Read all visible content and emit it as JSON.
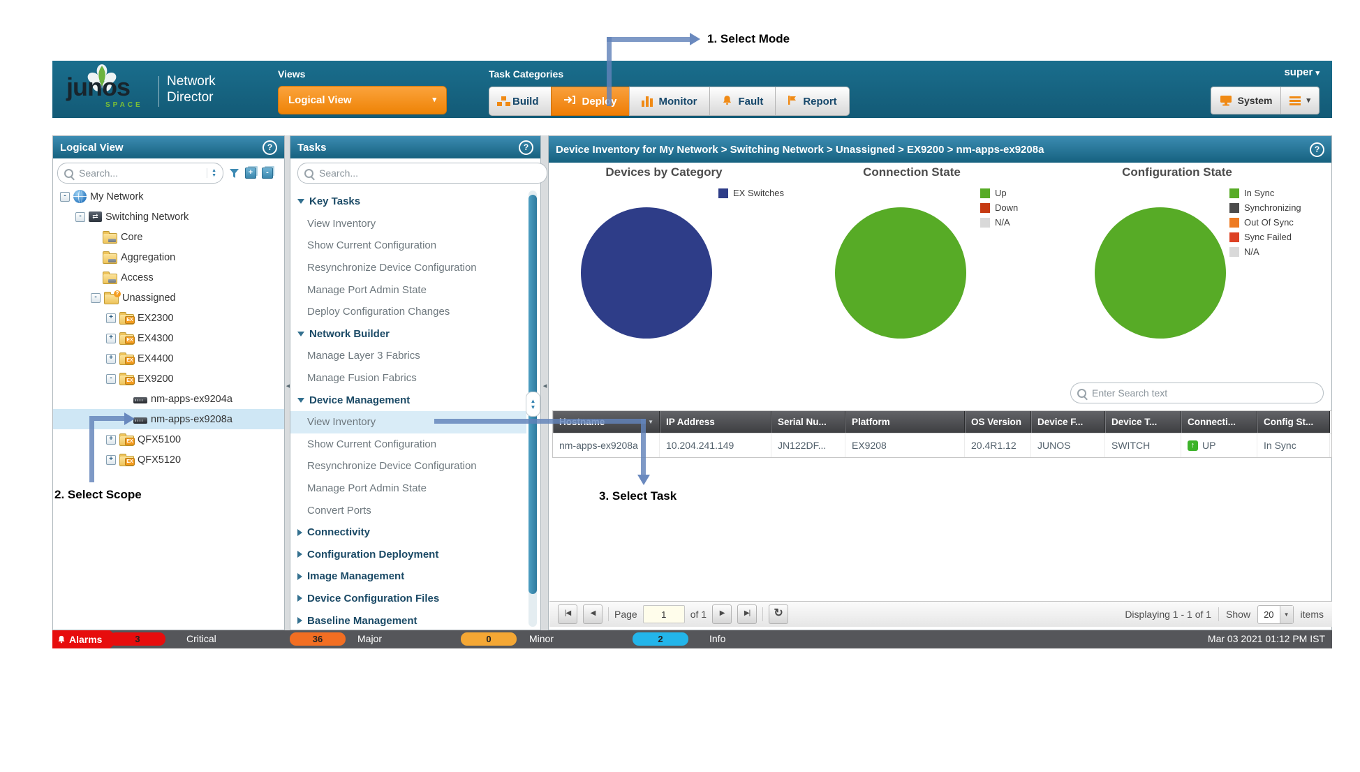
{
  "annotations": {
    "step1": "1. Select Mode",
    "step2": "2. Select Scope",
    "step3": "3. Select Task"
  },
  "header": {
    "logo_primary": "junos",
    "logo_space": "SPACE",
    "product": "Network Director",
    "views_label": "Views",
    "view_button_label": "Logical View",
    "task_categories_label": "Task Categories",
    "tabs": [
      {
        "label": "Build",
        "icon": "build-blocks-icon",
        "active": false
      },
      {
        "label": "Deploy",
        "icon": "deploy-arrow-icon",
        "active": true
      },
      {
        "label": "Monitor",
        "icon": "monitor-bars-icon",
        "active": false
      },
      {
        "label": "Fault",
        "icon": "fault-bell-icon",
        "active": false
      },
      {
        "label": "Report",
        "icon": "report-flag-icon",
        "active": false
      }
    ],
    "user_label": "super",
    "system_label": "System"
  },
  "logical_panel": {
    "title": "Logical View",
    "search_placeholder": "Search...",
    "tree": [
      {
        "label": "My Network",
        "depth": 0,
        "expander": "minus",
        "icon": "globe-icon",
        "selected": false
      },
      {
        "label": "Switching Network",
        "depth": 1,
        "expander": "minus",
        "icon": "switching-network-icon",
        "selected": false
      },
      {
        "label": "Core",
        "depth": 2,
        "expander": "none",
        "icon": "folder-device-icon",
        "selected": false
      },
      {
        "label": "Aggregation",
        "depth": 2,
        "expander": "none",
        "icon": "folder-device-icon",
        "selected": false
      },
      {
        "label": "Access",
        "depth": 2,
        "expander": "none",
        "icon": "folder-device-icon",
        "selected": false
      },
      {
        "label": "Unassigned",
        "depth": 2,
        "expander": "minus",
        "icon": "folder-question-icon",
        "selected": false
      },
      {
        "label": "EX2300",
        "depth": 3,
        "expander": "plus",
        "icon": "folder-ex-icon",
        "selected": false
      },
      {
        "label": "EX4300",
        "depth": 3,
        "expander": "plus",
        "icon": "folder-ex-icon",
        "selected": false
      },
      {
        "label": "EX4400",
        "depth": 3,
        "expander": "plus",
        "icon": "folder-ex-icon",
        "selected": false
      },
      {
        "label": "EX9200",
        "depth": 3,
        "expander": "minus",
        "icon": "folder-ex-icon",
        "selected": false
      },
      {
        "label": "nm-apps-ex9204a",
        "depth": 4,
        "expander": "none",
        "icon": "switch-device-icon",
        "selected": false
      },
      {
        "label": "nm-apps-ex9208a",
        "depth": 4,
        "expander": "none",
        "icon": "switch-device-icon",
        "selected": true
      },
      {
        "label": "QFX5100",
        "depth": 3,
        "expander": "plus",
        "icon": "folder-ex-icon",
        "selected": false
      },
      {
        "label": "QFX5120",
        "depth": 3,
        "expander": "plus",
        "icon": "folder-ex-icon",
        "selected": false
      }
    ]
  },
  "tasks_panel": {
    "title": "Tasks",
    "search_placeholder": "Search...",
    "items": [
      {
        "label": "Key Tasks",
        "type": "category",
        "state": "expanded",
        "selected": false
      },
      {
        "label": "View Inventory",
        "type": "task",
        "selected": false
      },
      {
        "label": "Show Current Configuration",
        "type": "task",
        "selected": false
      },
      {
        "label": "Resynchronize Device Configuration",
        "type": "task",
        "selected": false
      },
      {
        "label": "Manage Port Admin State",
        "type": "task",
        "selected": false
      },
      {
        "label": "Deploy Configuration Changes",
        "type": "task",
        "selected": false
      },
      {
        "label": "Network Builder",
        "type": "category",
        "state": "expanded",
        "selected": false
      },
      {
        "label": "Manage Layer 3 Fabrics",
        "type": "task",
        "selected": false
      },
      {
        "label": "Manage Fusion Fabrics",
        "type": "task",
        "selected": false
      },
      {
        "label": "Device Management",
        "type": "category",
        "state": "expanded",
        "selected": false
      },
      {
        "label": "View Inventory",
        "type": "task",
        "selected": true
      },
      {
        "label": "Show Current Configuration",
        "type": "task",
        "selected": false
      },
      {
        "label": "Resynchronize Device Configuration",
        "type": "task",
        "selected": false
      },
      {
        "label": "Manage Port Admin State",
        "type": "task",
        "selected": false
      },
      {
        "label": "Convert Ports",
        "type": "task",
        "selected": false
      },
      {
        "label": "Connectivity",
        "type": "category",
        "state": "collapsed",
        "selected": false
      },
      {
        "label": "Configuration Deployment",
        "type": "category",
        "state": "collapsed",
        "selected": false
      },
      {
        "label": "Image Management",
        "type": "category",
        "state": "collapsed",
        "selected": false
      },
      {
        "label": "Device Configuration Files",
        "type": "category",
        "state": "collapsed",
        "selected": false
      },
      {
        "label": "Baseline Management",
        "type": "category",
        "state": "collapsed",
        "selected": false
      }
    ]
  },
  "main": {
    "title": "Device Inventory for My Network > Switching Network > Unassigned > EX9200 > nm-apps-ex9208a",
    "search_placeholder": "Enter Search text",
    "table": {
      "columns": [
        "Hostname",
        "IP Address",
        "Serial Nu...",
        "Platform",
        "OS Version",
        "Device F...",
        "Device T...",
        "Connecti...",
        "Config St..."
      ],
      "rows": [
        [
          "nm-apps-ex9208a",
          "10.204.241.149",
          "JN122DF...",
          "EX9208",
          "20.4R1.12",
          "JUNOS",
          "SWITCH",
          "UP",
          "In Sync"
        ]
      ]
    },
    "pagination": {
      "page_label": "Page",
      "page_value": "1",
      "of_label": "of 1",
      "displaying_text": "Displaying 1 - 1 of 1",
      "show_label": "Show",
      "page_size": "20",
      "items_label": "items"
    }
  },
  "chart_data": [
    {
      "type": "pie",
      "title": "Devices by Category",
      "labels": [
        "EX Switches"
      ],
      "values": [
        100
      ],
      "colors": [
        "#2e3d88"
      ],
      "legend_position": "right"
    },
    {
      "type": "pie",
      "title": "Connection State",
      "labels": [
        "Up",
        "Down",
        "N/A"
      ],
      "values": [
        100,
        0,
        0
      ],
      "colors": [
        "#57ab26",
        "#c63a12",
        "#d9d9d9"
      ],
      "legend_position": "right"
    },
    {
      "type": "pie",
      "title": "Configuration State",
      "labels": [
        "In Sync",
        "Synchronizing",
        "Out Of Sync",
        "Sync Failed",
        "N/A"
      ],
      "values": [
        100,
        0,
        0,
        0,
        0
      ],
      "colors": [
        "#57ab26",
        "#4b4b4b",
        "#ee7b22",
        "#dd4124",
        "#d9d9d9"
      ],
      "legend_position": "right"
    }
  ],
  "alarm_bar": {
    "alarms_label": "Alarms",
    "counts": [
      {
        "value": "3",
        "label": "Critical",
        "color": "#e70d0d"
      },
      {
        "value": "36",
        "label": "Major",
        "color": "#f26e22"
      },
      {
        "value": "0",
        "label": "Minor",
        "color": "#f4a734"
      },
      {
        "value": "2",
        "label": "Info",
        "color": "#23b5ea"
      }
    ],
    "timestamp": "Mar 03 2021 01:12 PM IST"
  }
}
